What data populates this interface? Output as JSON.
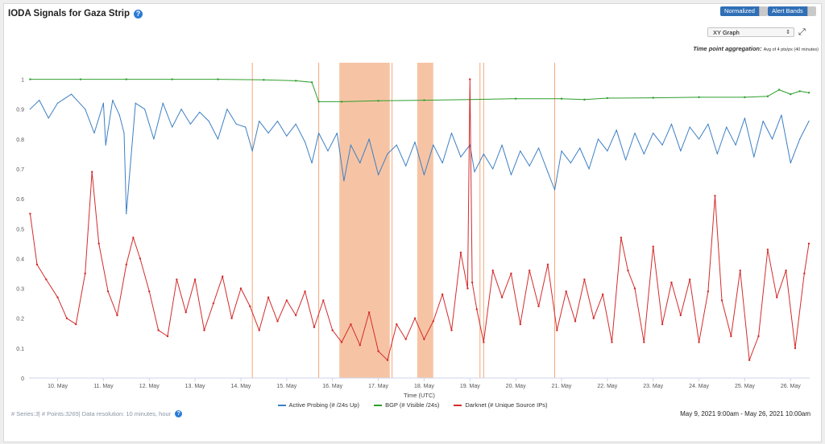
{
  "header": {
    "title": "IODA Signals for Gaza Strip",
    "toggle_normalized": "Normalized",
    "toggle_alert_bands": "Alert Bands",
    "graph_type": "XY Graph",
    "aggregation_label": "Time point aggregation:",
    "aggregation_value": "Avg of 4 pts/px (40 minutes)"
  },
  "footer": {
    "series_label": "# Series: ",
    "series_count": "3",
    "points_label": " | # Points: ",
    "points_count": "3265",
    "resolution": " | Data resolution: 10 minutes, hour",
    "date_range": "May 9, 2021 9:00am - May 26, 2021 10:00am"
  },
  "colors": {
    "active_probing": "#3d7fc4",
    "bgp": "#2e9e2e",
    "darknet": "#d42b2b",
    "alert_band": "#f6c4a4",
    "alert_line": "#f2a77a"
  },
  "chart_data": {
    "type": "line",
    "xlabel": "Time (UTC)",
    "ylabel": "",
    "ylim": [
      0,
      1.05
    ],
    "x_range": [
      9.375,
      26.417
    ],
    "yticks": [
      0,
      0.1,
      0.2,
      0.3,
      0.4,
      0.5,
      0.6,
      0.7,
      0.8,
      0.9,
      1
    ],
    "xticks": [
      {
        "value": 10,
        "label": "10. May"
      },
      {
        "value": 11,
        "label": "11. May"
      },
      {
        "value": 12,
        "label": "12. May"
      },
      {
        "value": 13,
        "label": "13. May"
      },
      {
        "value": 14,
        "label": "14. May"
      },
      {
        "value": 15,
        "label": "15. May"
      },
      {
        "value": 16,
        "label": "16. May"
      },
      {
        "value": 17,
        "label": "17. May"
      },
      {
        "value": 18,
        "label": "18. May"
      },
      {
        "value": 19,
        "label": "19. May"
      },
      {
        "value": 20,
        "label": "20. May"
      },
      {
        "value": 21,
        "label": "21. May"
      },
      {
        "value": 22,
        "label": "22. May"
      },
      {
        "value": 23,
        "label": "23. May"
      },
      {
        "value": 24,
        "label": "24. May"
      },
      {
        "value": 25,
        "label": "25. May"
      },
      {
        "value": 26,
        "label": "26. May"
      }
    ],
    "grid": false,
    "legend_position": "bottom-center",
    "alert_bands": [
      [
        16.15,
        17.25
      ],
      [
        17.85,
        18.2
      ]
    ],
    "alert_lines": [
      14.25,
      15.7,
      17.3,
      19.22,
      19.3,
      20.85
    ],
    "series": [
      {
        "name": "Active Probing (# /24s Up)",
        "color": "#3d7fc4",
        "x": [
          9.4,
          9.6,
          9.8,
          10.0,
          10.3,
          10.6,
          10.8,
          11.0,
          11.05,
          11.2,
          11.35,
          11.45,
          11.5,
          11.7,
          11.9,
          12.1,
          12.3,
          12.5,
          12.7,
          12.9,
          13.1,
          13.3,
          13.5,
          13.7,
          13.9,
          14.1,
          14.25,
          14.4,
          14.6,
          14.8,
          15.0,
          15.2,
          15.4,
          15.55,
          15.7,
          15.9,
          16.1,
          16.25,
          16.4,
          16.6,
          16.8,
          17.0,
          17.2,
          17.4,
          17.6,
          17.8,
          18.0,
          18.2,
          18.4,
          18.6,
          18.8,
          19.0,
          19.1,
          19.3,
          19.5,
          19.7,
          19.9,
          20.1,
          20.3,
          20.5,
          20.7,
          20.85,
          21.0,
          21.2,
          21.4,
          21.6,
          21.8,
          22.0,
          22.2,
          22.4,
          22.6,
          22.8,
          23.0,
          23.2,
          23.4,
          23.6,
          23.8,
          24.0,
          24.2,
          24.4,
          24.6,
          24.8,
          25.0,
          25.2,
          25.4,
          25.6,
          25.8,
          26.0,
          26.2,
          26.4
        ],
        "values": [
          0.9,
          0.93,
          0.87,
          0.92,
          0.95,
          0.9,
          0.82,
          0.92,
          0.78,
          0.93,
          0.88,
          0.82,
          0.55,
          0.92,
          0.9,
          0.8,
          0.92,
          0.84,
          0.9,
          0.85,
          0.89,
          0.86,
          0.8,
          0.9,
          0.85,
          0.84,
          0.76,
          0.86,
          0.82,
          0.86,
          0.81,
          0.85,
          0.79,
          0.72,
          0.82,
          0.76,
          0.82,
          0.66,
          0.78,
          0.72,
          0.8,
          0.68,
          0.75,
          0.78,
          0.71,
          0.79,
          0.68,
          0.78,
          0.72,
          0.82,
          0.74,
          0.78,
          0.69,
          0.75,
          0.7,
          0.78,
          0.68,
          0.76,
          0.71,
          0.77,
          0.69,
          0.63,
          0.76,
          0.72,
          0.77,
          0.7,
          0.8,
          0.76,
          0.83,
          0.73,
          0.82,
          0.75,
          0.82,
          0.78,
          0.85,
          0.76,
          0.84,
          0.8,
          0.85,
          0.75,
          0.84,
          0.78,
          0.87,
          0.74,
          0.86,
          0.8,
          0.88,
          0.72,
          0.8,
          0.86
        ]
      },
      {
        "name": "BGP (# Visible /24s)",
        "color": "#2e9e2e",
        "x": [
          9.4,
          10.5,
          11.5,
          12.5,
          13.5,
          14.5,
          15.2,
          15.55,
          15.7,
          16.2,
          17.0,
          18.0,
          19.0,
          20.0,
          21.0,
          21.5,
          22.0,
          23.0,
          24.0,
          25.0,
          25.5,
          25.75,
          26.0,
          26.2,
          26.4
        ],
        "values": [
          1.0,
          1.0,
          1.0,
          1.0,
          1.0,
          0.998,
          0.995,
          0.99,
          0.925,
          0.925,
          0.928,
          0.93,
          0.932,
          0.935,
          0.935,
          0.932,
          0.937,
          0.938,
          0.94,
          0.94,
          0.943,
          0.965,
          0.95,
          0.96,
          0.955
        ]
      },
      {
        "name": "Darknet (# Unique Source IPs)",
        "color": "#d42b2b",
        "x": [
          9.4,
          9.55,
          9.75,
          10.0,
          10.2,
          10.4,
          10.6,
          10.75,
          10.9,
          11.1,
          11.3,
          11.5,
          11.65,
          11.8,
          12.0,
          12.2,
          12.4,
          12.6,
          12.8,
          13.0,
          13.2,
          13.4,
          13.6,
          13.8,
          14.0,
          14.2,
          14.4,
          14.6,
          14.8,
          15.0,
          15.2,
          15.4,
          15.6,
          15.8,
          16.0,
          16.2,
          16.4,
          16.6,
          16.8,
          17.0,
          17.2,
          17.4,
          17.6,
          17.8,
          18.0,
          18.2,
          18.4,
          18.6,
          18.8,
          18.95,
          19.0,
          19.05,
          19.15,
          19.3,
          19.5,
          19.7,
          19.9,
          20.1,
          20.3,
          20.5,
          20.7,
          20.9,
          21.1,
          21.3,
          21.5,
          21.7,
          21.9,
          22.1,
          22.3,
          22.45,
          22.6,
          22.8,
          23.0,
          23.2,
          23.4,
          23.6,
          23.8,
          24.0,
          24.2,
          24.35,
          24.5,
          24.7,
          24.9,
          25.1,
          25.3,
          25.5,
          25.7,
          25.9,
          26.1,
          26.3,
          26.4
        ],
        "values": [
          0.55,
          0.38,
          0.33,
          0.27,
          0.2,
          0.18,
          0.35,
          0.69,
          0.45,
          0.29,
          0.21,
          0.38,
          0.47,
          0.4,
          0.29,
          0.16,
          0.14,
          0.33,
          0.22,
          0.33,
          0.16,
          0.25,
          0.34,
          0.2,
          0.3,
          0.24,
          0.16,
          0.27,
          0.19,
          0.26,
          0.21,
          0.29,
          0.17,
          0.26,
          0.16,
          0.12,
          0.18,
          0.11,
          0.22,
          0.09,
          0.06,
          0.18,
          0.13,
          0.2,
          0.13,
          0.19,
          0.28,
          0.16,
          0.42,
          0.3,
          1.0,
          0.32,
          0.23,
          0.12,
          0.36,
          0.27,
          0.35,
          0.18,
          0.36,
          0.24,
          0.38,
          0.16,
          0.29,
          0.19,
          0.33,
          0.2,
          0.28,
          0.12,
          0.47,
          0.36,
          0.3,
          0.12,
          0.44,
          0.18,
          0.32,
          0.21,
          0.33,
          0.12,
          0.29,
          0.61,
          0.26,
          0.14,
          0.36,
          0.06,
          0.14,
          0.43,
          0.27,
          0.36,
          0.1,
          0.35,
          0.45
        ]
      }
    ]
  }
}
